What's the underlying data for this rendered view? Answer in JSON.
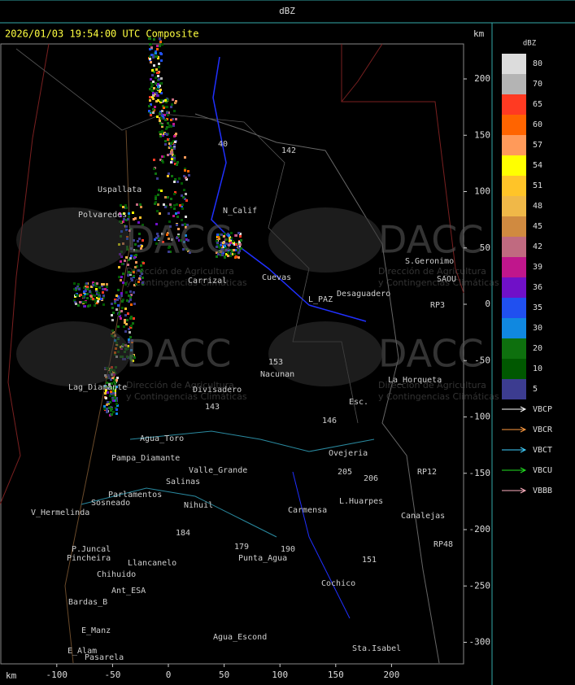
{
  "header": {
    "title": "dBZ"
  },
  "map": {
    "timestamp": "2026/01/03 19:54:00 UTC Composite",
    "unit_top": "km",
    "unit_bottom": "km",
    "x_ticks": [
      -100,
      -50,
      0,
      50,
      100,
      150,
      200
    ],
    "y_ticks": [
      200,
      150,
      100,
      50,
      0,
      -50,
      -100,
      -150,
      -200,
      -250,
      -300
    ],
    "watermark": {
      "logo": "DACC",
      "line1": "Dirección de Agricultura",
      "line2": "y Contingencias Climáticas"
    },
    "places": [
      "Uspallata",
      "Polvaredes",
      "N_Calif",
      "S.Geronimo",
      "SAOU",
      "Desaguadero",
      "L_PAZ",
      "Nacunan",
      "La_Horqueta",
      "Divisadero",
      "Lag_Diamante",
      "Esc.",
      "Agua_Toro",
      "Pampa_Diamante",
      "Valle_Grande",
      "Ovejeria",
      "Parlamentos",
      "Sosneado",
      "Salinas",
      "Nihuil",
      "L.Huarpes",
      "Canalejas",
      "Carmensa",
      "V_Hermelinda",
      "Punta_Agua",
      "P.Juncal",
      "Pincheira",
      "Llancanelo",
      "Chihuido",
      "Ant_ESA",
      "Bardas_B",
      "E_Manz",
      "E_Alam",
      "Pasarela",
      "Cochico",
      "Agua_Escond",
      "Sta.Isabel",
      "Carrizal",
      "Cuevas",
      "40",
      "142",
      "153",
      "143",
      "184",
      "179",
      "151",
      "190",
      "146",
      "205",
      "206",
      "RP3",
      "RP12",
      "RP48"
    ]
  },
  "colorbar": {
    "title": "dBZ",
    "levels": [
      {
        "label": 80,
        "color": "#dcdcdc"
      },
      {
        "label": 70,
        "color": "#b4b4b4"
      },
      {
        "label": 65,
        "color": "#ff3a22"
      },
      {
        "label": 60,
        "color": "#ff6400"
      },
      {
        "label": 57,
        "color": "#ff9a5a"
      },
      {
        "label": 54,
        "color": "#ffff00"
      },
      {
        "label": 51,
        "color": "#ffc428"
      },
      {
        "label": 48,
        "color": "#f0b848"
      },
      {
        "label": 45,
        "color": "#d08a40"
      },
      {
        "label": 42,
        "color": "#c06a80"
      },
      {
        "label": 39,
        "color": "#c0168c"
      },
      {
        "label": 36,
        "color": "#7010c8"
      },
      {
        "label": 35,
        "color": "#2050f0"
      },
      {
        "label": 30,
        "color": "#1088e0"
      },
      {
        "label": 20,
        "color": "#0e700e"
      },
      {
        "label": 10,
        "color": "#005800"
      },
      {
        "label": 5,
        "color": "#3c3c90"
      }
    ]
  },
  "legend": {
    "items": [
      {
        "name": "VBCP",
        "color": "#ffffff"
      },
      {
        "name": "VBCR",
        "color": "#ff9a40"
      },
      {
        "name": "VBCT",
        "color": "#40d0ff"
      },
      {
        "name": "VBCU",
        "color": "#20e020"
      },
      {
        "name": "VBBB",
        "color": "#ffb0c0"
      }
    ]
  }
}
